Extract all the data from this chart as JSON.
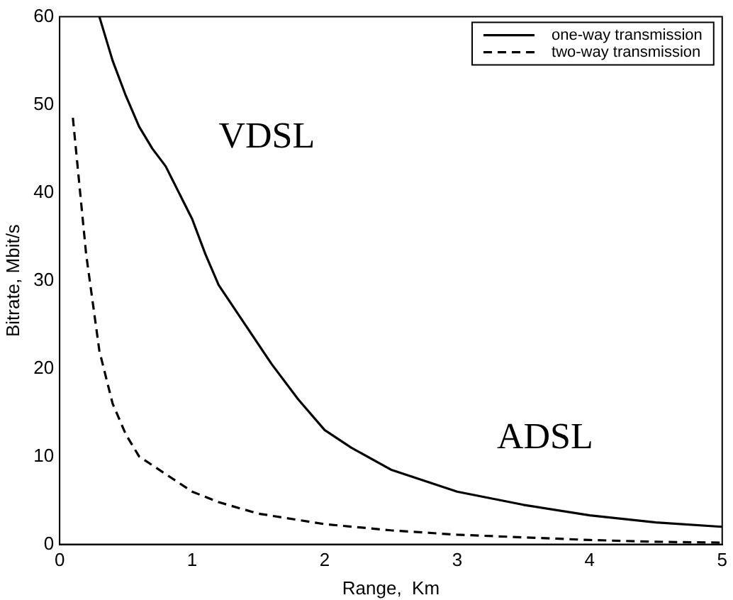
{
  "chart_data": {
    "type": "line",
    "xlabel": "Range,  Km",
    "ylabel": "Bitrate, Mbit/s",
    "xlim": [
      0,
      5
    ],
    "xticks": [
      0,
      1,
      2,
      3,
      4,
      5
    ],
    "ylim": [
      0,
      60
    ],
    "yticks": [
      0,
      10,
      20,
      30,
      40,
      50,
      60
    ],
    "grid": false,
    "legend": "top right",
    "marker": "none",
    "series": [
      {
        "name": "one-way transmission",
        "color": "#000000",
        "line_style": "solid",
        "x": [
          0.3,
          0.4,
          0.5,
          0.6,
          0.7,
          0.8,
          0.9,
          1.0,
          1.1,
          1.2,
          1.4,
          1.6,
          1.8,
          2.0,
          2.2,
          2.5,
          3.0,
          3.5,
          4.0,
          4.5,
          5.0
        ],
        "values": [
          60,
          55,
          51,
          47.5,
          45,
          43,
          40,
          37,
          33,
          29.5,
          25,
          20.5,
          16.5,
          13,
          11,
          8.5,
          6,
          4.5,
          3.3,
          2.5,
          2
        ]
      },
      {
        "name": "two-way transmission",
        "color": "#000000",
        "line_style": "dashed",
        "x": [
          0.1,
          0.2,
          0.3,
          0.4,
          0.5,
          0.6,
          0.8,
          1.0,
          1.2,
          1.5,
          2.0,
          2.5,
          3.0,
          3.5,
          4.0,
          4.5,
          5.0
        ],
        "values": [
          48.5,
          33,
          22,
          16,
          12.5,
          10,
          8,
          6,
          4.8,
          3.5,
          2.3,
          1.6,
          1.1,
          0.8,
          0.5,
          0.3,
          0.2
        ]
      }
    ],
    "annotations": [
      "VDSL",
      "ADSL"
    ]
  }
}
